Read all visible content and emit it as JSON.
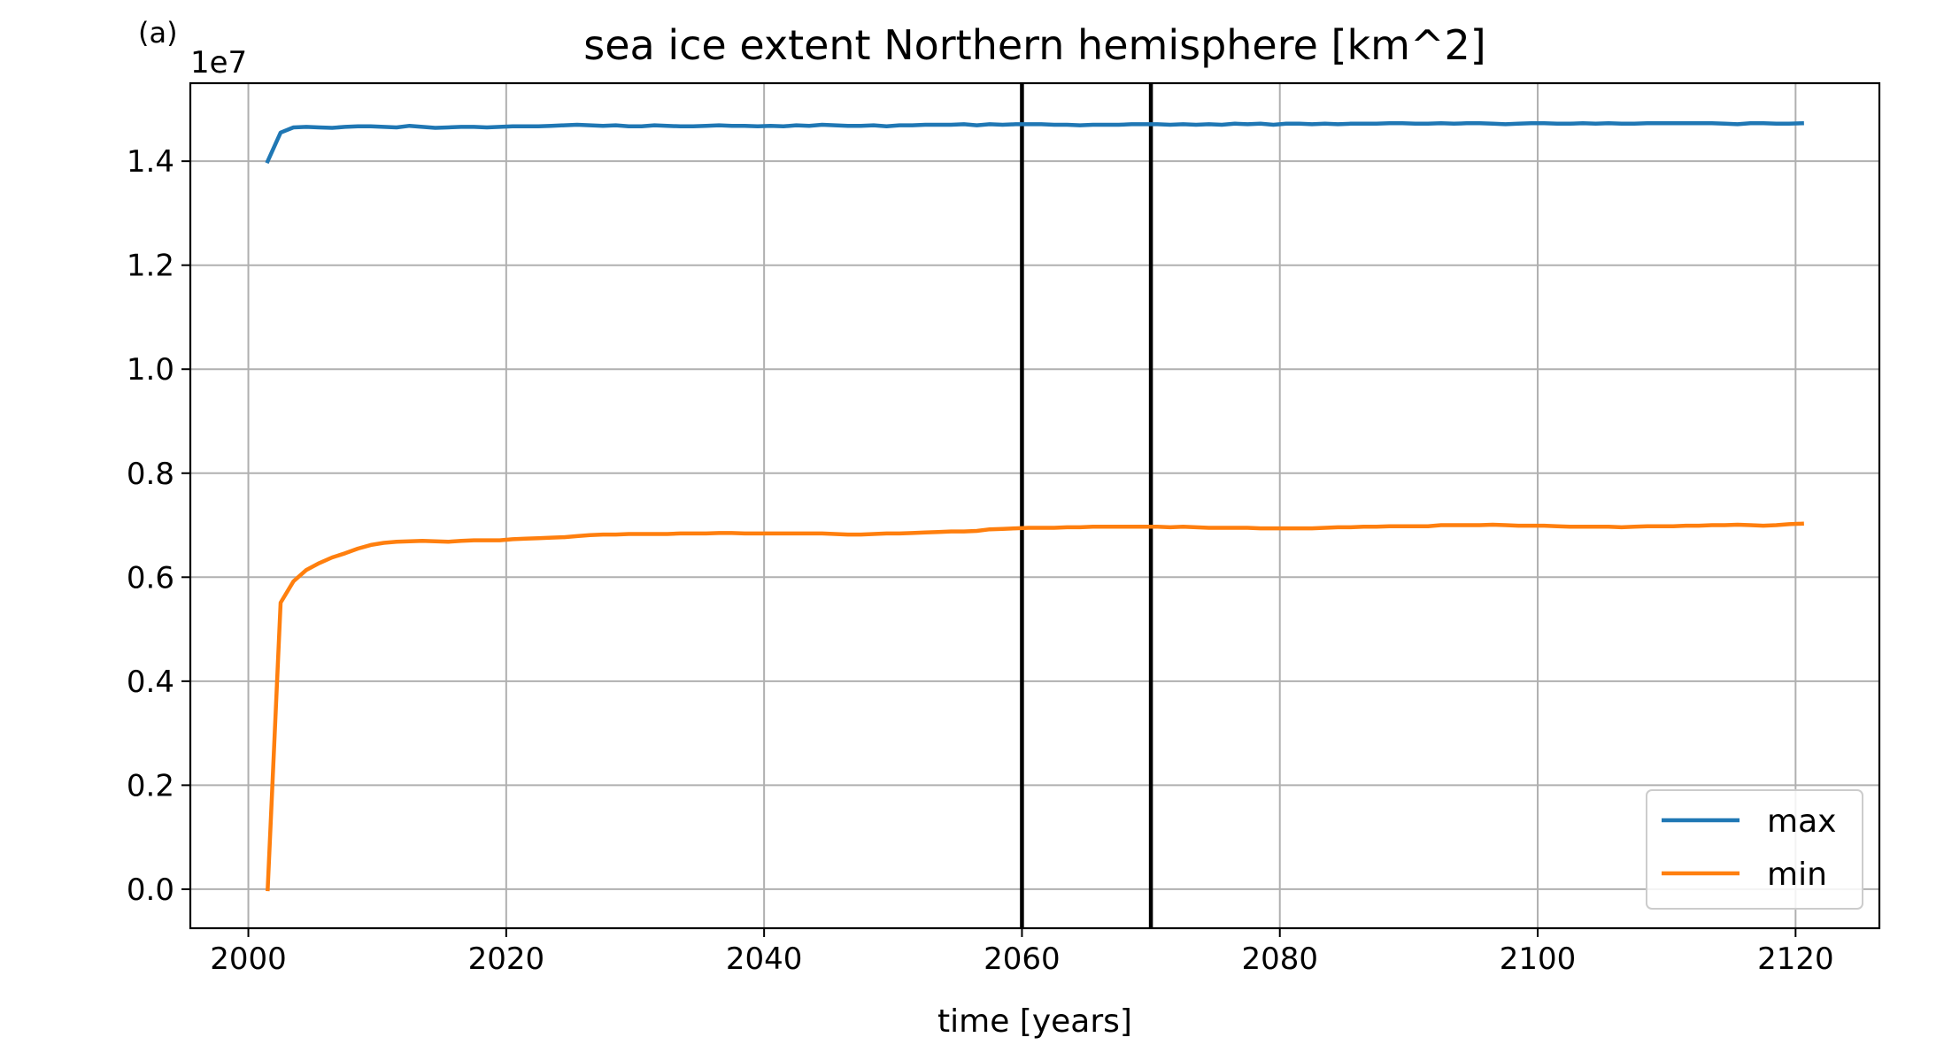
{
  "chart_data": {
    "type": "line",
    "panel_label": "(a)",
    "title": "sea ice extent Northern hemisphere [km^2]",
    "xlabel": "time [years]",
    "ylabel": "",
    "y_offset_text": "1e7",
    "xlim": [
      1995.5,
      2126.5
    ],
    "ylim": [
      -0.075,
      1.55
    ],
    "y_scale_factor": 10000000,
    "x_ticks": [
      2000,
      2020,
      2040,
      2060,
      2080,
      2100,
      2120
    ],
    "x_tick_labels": [
      "2000",
      "2020",
      "2040",
      "2060",
      "2080",
      "2100",
      "2120"
    ],
    "y_ticks": [
      0.0,
      0.2,
      0.4,
      0.6,
      0.8,
      1.0,
      1.2,
      1.4
    ],
    "y_tick_labels": [
      "0.0",
      "0.2",
      "0.4",
      "0.6",
      "0.8",
      "1.0",
      "1.2",
      "1.4"
    ],
    "grid": true,
    "legend_position": "lower-right",
    "vertical_lines": [
      2060,
      2070
    ],
    "colors": {
      "max": "#1f77b4",
      "min": "#ff7f0e",
      "vline": "#000000",
      "grid": "#b0b0b0"
    },
    "series": [
      {
        "name": "max",
        "color": "#1f77b4",
        "x": [
          2001.5,
          2002.5,
          2003.5,
          2004.5,
          2005.5,
          2006.5,
          2007.5,
          2008.5,
          2009.5,
          2010.5,
          2011.5,
          2012.5,
          2013.5,
          2014.5,
          2015.5,
          2016.5,
          2017.5,
          2018.5,
          2019.5,
          2020.5,
          2021.5,
          2022.5,
          2023.5,
          2024.5,
          2025.5,
          2026.5,
          2027.5,
          2028.5,
          2029.5,
          2030.5,
          2031.5,
          2032.5,
          2033.5,
          2034.5,
          2035.5,
          2036.5,
          2037.5,
          2038.5,
          2039.5,
          2040.5,
          2041.5,
          2042.5,
          2043.5,
          2044.5,
          2045.5,
          2046.5,
          2047.5,
          2048.5,
          2049.5,
          2050.5,
          2051.5,
          2052.5,
          2053.5,
          2054.5,
          2055.5,
          2056.5,
          2057.5,
          2058.5,
          2059.5,
          2060.5,
          2061.5,
          2062.5,
          2063.5,
          2064.5,
          2065.5,
          2066.5,
          2067.5,
          2068.5,
          2069.5,
          2070.5,
          2071.5,
          2072.5,
          2073.5,
          2074.5,
          2075.5,
          2076.5,
          2077.5,
          2078.5,
          2079.5,
          2080.5,
          2081.5,
          2082.5,
          2083.5,
          2084.5,
          2085.5,
          2086.5,
          2087.5,
          2088.5,
          2089.5,
          2090.5,
          2091.5,
          2092.5,
          2093.5,
          2094.5,
          2095.5,
          2096.5,
          2097.5,
          2098.5,
          2099.5,
          2100.5,
          2101.5,
          2102.5,
          2103.5,
          2104.5,
          2105.5,
          2106.5,
          2107.5,
          2108.5,
          2109.5,
          2110.5,
          2111.5,
          2112.5,
          2113.5,
          2114.5,
          2115.5,
          2116.5,
          2117.5,
          2118.5,
          2119.5,
          2120.5
        ],
        "values": [
          1.4,
          1.455,
          1.465,
          1.466,
          1.465,
          1.464,
          1.466,
          1.467,
          1.467,
          1.466,
          1.465,
          1.468,
          1.466,
          1.464,
          1.465,
          1.466,
          1.466,
          1.465,
          1.466,
          1.467,
          1.467,
          1.467,
          1.468,
          1.469,
          1.47,
          1.469,
          1.468,
          1.469,
          1.467,
          1.467,
          1.469,
          1.468,
          1.467,
          1.467,
          1.468,
          1.469,
          1.468,
          1.468,
          1.467,
          1.468,
          1.467,
          1.469,
          1.468,
          1.47,
          1.469,
          1.468,
          1.468,
          1.469,
          1.467,
          1.469,
          1.469,
          1.47,
          1.47,
          1.47,
          1.471,
          1.469,
          1.471,
          1.47,
          1.471,
          1.471,
          1.471,
          1.47,
          1.47,
          1.469,
          1.47,
          1.47,
          1.47,
          1.471,
          1.471,
          1.471,
          1.47,
          1.471,
          1.47,
          1.471,
          1.47,
          1.472,
          1.471,
          1.472,
          1.47,
          1.472,
          1.472,
          1.471,
          1.472,
          1.471,
          1.472,
          1.472,
          1.472,
          1.473,
          1.473,
          1.472,
          1.472,
          1.473,
          1.472,
          1.473,
          1.473,
          1.472,
          1.471,
          1.472,
          1.473,
          1.473,
          1.472,
          1.472,
          1.473,
          1.472,
          1.473,
          1.472,
          1.472,
          1.473,
          1.473,
          1.473,
          1.473,
          1.473,
          1.473,
          1.472,
          1.471,
          1.473,
          1.473,
          1.472,
          1.472,
          1.473
        ]
      },
      {
        "name": "min",
        "color": "#ff7f0e",
        "x": [
          2001.5,
          2002.5,
          2003.5,
          2004.5,
          2005.5,
          2006.5,
          2007.5,
          2008.5,
          2009.5,
          2010.5,
          2011.5,
          2012.5,
          2013.5,
          2014.5,
          2015.5,
          2016.5,
          2017.5,
          2018.5,
          2019.5,
          2020.5,
          2021.5,
          2022.5,
          2023.5,
          2024.5,
          2025.5,
          2026.5,
          2027.5,
          2028.5,
          2029.5,
          2030.5,
          2031.5,
          2032.5,
          2033.5,
          2034.5,
          2035.5,
          2036.5,
          2037.5,
          2038.5,
          2039.5,
          2040.5,
          2041.5,
          2042.5,
          2043.5,
          2044.5,
          2045.5,
          2046.5,
          2047.5,
          2048.5,
          2049.5,
          2050.5,
          2051.5,
          2052.5,
          2053.5,
          2054.5,
          2055.5,
          2056.5,
          2057.5,
          2058.5,
          2059.5,
          2060.5,
          2061.5,
          2062.5,
          2063.5,
          2064.5,
          2065.5,
          2066.5,
          2067.5,
          2068.5,
          2069.5,
          2070.5,
          2071.5,
          2072.5,
          2073.5,
          2074.5,
          2075.5,
          2076.5,
          2077.5,
          2078.5,
          2079.5,
          2080.5,
          2081.5,
          2082.5,
          2083.5,
          2084.5,
          2085.5,
          2086.5,
          2087.5,
          2088.5,
          2089.5,
          2090.5,
          2091.5,
          2092.5,
          2093.5,
          2094.5,
          2095.5,
          2096.5,
          2097.5,
          2098.5,
          2099.5,
          2100.5,
          2101.5,
          2102.5,
          2103.5,
          2104.5,
          2105.5,
          2106.5,
          2107.5,
          2108.5,
          2109.5,
          2110.5,
          2111.5,
          2112.5,
          2113.5,
          2114.5,
          2115.5,
          2116.5,
          2117.5,
          2118.5,
          2119.5,
          2120.5
        ],
        "values": [
          0.0,
          0.551,
          0.592,
          0.614,
          0.627,
          0.638,
          0.646,
          0.655,
          0.662,
          0.666,
          0.668,
          0.669,
          0.67,
          0.669,
          0.668,
          0.67,
          0.671,
          0.671,
          0.671,
          0.673,
          0.674,
          0.675,
          0.676,
          0.677,
          0.679,
          0.681,
          0.682,
          0.682,
          0.683,
          0.683,
          0.683,
          0.683,
          0.684,
          0.684,
          0.684,
          0.685,
          0.685,
          0.684,
          0.684,
          0.684,
          0.684,
          0.684,
          0.684,
          0.684,
          0.683,
          0.682,
          0.682,
          0.683,
          0.684,
          0.684,
          0.685,
          0.686,
          0.687,
          0.688,
          0.688,
          0.689,
          0.692,
          0.693,
          0.694,
          0.695,
          0.695,
          0.695,
          0.696,
          0.696,
          0.697,
          0.697,
          0.697,
          0.697,
          0.697,
          0.697,
          0.696,
          0.697,
          0.696,
          0.695,
          0.695,
          0.695,
          0.695,
          0.694,
          0.694,
          0.694,
          0.694,
          0.694,
          0.695,
          0.696,
          0.696,
          0.697,
          0.697,
          0.698,
          0.698,
          0.698,
          0.698,
          0.7,
          0.7,
          0.7,
          0.7,
          0.701,
          0.7,
          0.699,
          0.699,
          0.699,
          0.698,
          0.697,
          0.697,
          0.697,
          0.697,
          0.696,
          0.697,
          0.698,
          0.698,
          0.698,
          0.699,
          0.699,
          0.7,
          0.7,
          0.701,
          0.7,
          0.699,
          0.7,
          0.702,
          0.703
        ]
      }
    ]
  }
}
